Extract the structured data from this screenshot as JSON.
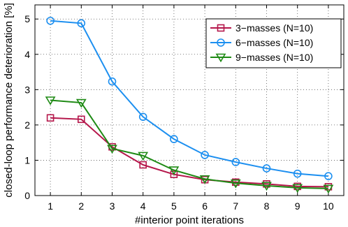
{
  "chart_data": {
    "type": "line",
    "title": "",
    "xlabel": "#interior point iterations",
    "ylabel": "closed-loop performance deterioration [%]",
    "x": [
      1,
      2,
      3,
      4,
      5,
      6,
      7,
      8,
      9,
      10
    ],
    "xticks": [
      "1",
      "2",
      "3",
      "4",
      "5",
      "6",
      "7",
      "8",
      "9",
      "10"
    ],
    "yticks": [
      "0",
      "1",
      "2",
      "3",
      "4",
      "5"
    ],
    "xlim": [
      0.5,
      10.5
    ],
    "ylim": [
      0,
      5.4
    ],
    "grid": true,
    "legend_position": "top-right",
    "series": [
      {
        "name": "3−masses (N=10)",
        "color": "#b5174b",
        "marker": "square",
        "values": [
          2.2,
          2.16,
          1.38,
          0.87,
          0.6,
          0.45,
          0.38,
          0.33,
          0.26,
          0.25
        ]
      },
      {
        "name": "6−masses (N=10)",
        "color": "#1c8ff0",
        "marker": "circle",
        "values": [
          4.95,
          4.88,
          3.23,
          2.23,
          1.6,
          1.15,
          0.95,
          0.77,
          0.62,
          0.55
        ]
      },
      {
        "name": "9−masses (N=10)",
        "color": "#1e8a14",
        "marker": "triangle-down",
        "values": [
          2.7,
          2.63,
          1.33,
          1.13,
          0.72,
          0.47,
          0.35,
          0.28,
          0.22,
          0.2
        ]
      }
    ]
  }
}
